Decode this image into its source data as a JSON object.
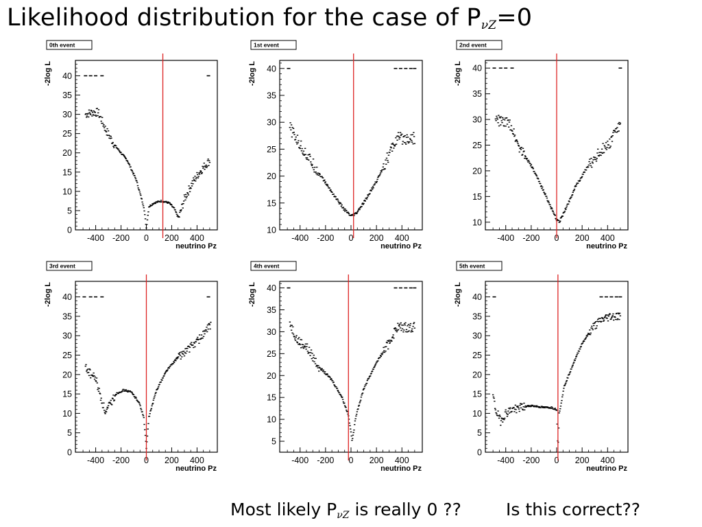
{
  "title": {
    "text": "Likelihood distribution for the case of P",
    "sub": "νZ",
    "tail": "=0"
  },
  "footer": {
    "q1_pre": "Most likely P",
    "q1_sub": "νZ",
    "q1_post": " is really 0 ??",
    "q2": "Is this correct??"
  },
  "colors": {
    "marker_line": "#dd2222",
    "data": "#000000"
  },
  "chart_data": [
    {
      "type": "scatter",
      "tag": "0th event",
      "xlabel": "neutrino Pz",
      "ylabel": "-2log L",
      "xticks": [
        -400,
        -200,
        0,
        200,
        400
      ],
      "yticks": [
        0,
        5,
        10,
        15,
        20,
        25,
        30,
        35,
        40
      ],
      "xlim": [
        -560,
        560
      ],
      "ylim": [
        0,
        44
      ],
      "marker_x": 130,
      "curve": [
        [
          -480,
          30
        ],
        [
          -430,
          30.5
        ],
        [
          -380,
          30.5
        ],
        [
          -320,
          26
        ],
        [
          -250,
          22
        ],
        [
          -150,
          18
        ],
        [
          -80,
          13
        ],
        [
          -20,
          6
        ],
        [
          0,
          0.5
        ],
        [
          20,
          6
        ],
        [
          60,
          7
        ],
        [
          120,
          7.5
        ],
        [
          180,
          7
        ],
        [
          220,
          5.5
        ],
        [
          255,
          3
        ],
        [
          300,
          8
        ],
        [
          360,
          12
        ],
        [
          420,
          15
        ],
        [
          470,
          17
        ],
        [
          500,
          18
        ]
      ],
      "flat_points": [
        [
          -480,
          40
        ],
        [
          -440,
          40
        ],
        [
          -400,
          40
        ],
        [
          -350,
          40
        ],
        [
          490,
          40
        ]
      ]
    },
    {
      "type": "scatter",
      "tag": "1st event",
      "xlabel": "neutrino Pz",
      "ylabel": "-2log L",
      "xticks": [
        -400,
        -200,
        0,
        200,
        400
      ],
      "yticks": [
        10,
        15,
        20,
        25,
        30,
        35,
        40
      ],
      "xlim": [
        -560,
        560
      ],
      "ylim": [
        10,
        41.5
      ],
      "marker_x": 20,
      "curve": [
        [
          -480,
          29
        ],
        [
          -420,
          26.5
        ],
        [
          -350,
          24
        ],
        [
          -250,
          20.5
        ],
        [
          -150,
          17
        ],
        [
          -60,
          14
        ],
        [
          0,
          12.5
        ],
        [
          40,
          13
        ],
        [
          100,
          15
        ],
        [
          200,
          19
        ],
        [
          300,
          24
        ],
        [
          360,
          27
        ],
        [
          420,
          27
        ],
        [
          500,
          27
        ]
      ],
      "flat_points": [
        [
          -490,
          40
        ],
        [
          350,
          40
        ],
        [
          390,
          40
        ],
        [
          430,
          40
        ],
        [
          470,
          40
        ],
        [
          500,
          40
        ]
      ]
    },
    {
      "type": "scatter",
      "tag": "2nd event",
      "xlabel": "neutrino Pz",
      "ylabel": "-2log L",
      "xticks": [
        -400,
        -200,
        0,
        200,
        400
      ],
      "yticks": [
        10,
        15,
        20,
        25,
        30,
        35,
        40
      ],
      "xlim": [
        -560,
        560
      ],
      "ylim": [
        8.5,
        41.5
      ],
      "marker_x": 0,
      "curve": [
        [
          -480,
          30
        ],
        [
          -420,
          29.5
        ],
        [
          -360,
          29
        ],
        [
          -300,
          25
        ],
        [
          -200,
          21
        ],
        [
          -100,
          16
        ],
        [
          -30,
          12
        ],
        [
          0,
          10.5
        ],
        [
          20,
          10
        ],
        [
          60,
          12
        ],
        [
          150,
          17
        ],
        [
          250,
          21
        ],
        [
          350,
          24
        ],
        [
          420,
          25.5
        ],
        [
          460,
          28
        ],
        [
          500,
          28.5
        ]
      ],
      "flat_points": [
        [
          -490,
          40
        ],
        [
          -440,
          40
        ],
        [
          -400,
          40
        ],
        [
          -350,
          40
        ],
        [
          500,
          40
        ]
      ]
    },
    {
      "type": "scatter",
      "tag": "3rd event",
      "xlabel": "neutrino Pz",
      "ylabel": "-2log L",
      "xticks": [
        -400,
        -200,
        0,
        200,
        400
      ],
      "yticks": [
        0,
        5,
        10,
        15,
        20,
        25,
        30,
        35,
        40
      ],
      "xlim": [
        -560,
        560
      ],
      "ylim": [
        0,
        44
      ],
      "marker_x": 0,
      "curve": [
        [
          -480,
          22
        ],
        [
          -440,
          20
        ],
        [
          -400,
          19
        ],
        [
          -360,
          14
        ],
        [
          -320,
          10
        ],
        [
          -290,
          12
        ],
        [
          -240,
          15
        ],
        [
          -180,
          16
        ],
        [
          -120,
          15.5
        ],
        [
          -60,
          13
        ],
        [
          -20,
          9
        ],
        [
          0,
          1
        ],
        [
          20,
          9
        ],
        [
          80,
          16
        ],
        [
          160,
          21
        ],
        [
          250,
          24.5
        ],
        [
          350,
          27
        ],
        [
          430,
          29.5
        ],
        [
          480,
          31.5
        ],
        [
          510,
          33
        ]
      ],
      "flat_points": [
        [
          -490,
          40
        ],
        [
          -440,
          40
        ],
        [
          -400,
          40
        ],
        [
          -350,
          40
        ],
        [
          490,
          40
        ]
      ]
    },
    {
      "type": "scatter",
      "tag": "4th event",
      "xlabel": "neutrino Pz",
      "ylabel": "-2log L",
      "xticks": [
        -400,
        -200,
        0,
        200,
        400
      ],
      "yticks": [
        5,
        10,
        15,
        20,
        25,
        30,
        35,
        40
      ],
      "xlim": [
        -560,
        560
      ],
      "ylim": [
        2.5,
        41.5
      ],
      "marker_x": -20,
      "curve": [
        [
          -480,
          32
        ],
        [
          -420,
          28
        ],
        [
          -350,
          26.5
        ],
        [
          -250,
          22
        ],
        [
          -150,
          19
        ],
        [
          -70,
          15
        ],
        [
          -20,
          11
        ],
        [
          10,
          5
        ],
        [
          40,
          11
        ],
        [
          100,
          17
        ],
        [
          200,
          23
        ],
        [
          300,
          27.5
        ],
        [
          360,
          31
        ],
        [
          420,
          31
        ],
        [
          500,
          31
        ]
      ],
      "flat_points": [
        [
          -490,
          40
        ],
        [
          350,
          40
        ],
        [
          390,
          40
        ],
        [
          430,
          40
        ],
        [
          470,
          40
        ],
        [
          500,
          40
        ]
      ]
    },
    {
      "type": "scatter",
      "tag": "5th event",
      "xlabel": "neutrino Pz",
      "ylabel": "-2log L",
      "xticks": [
        -400,
        -200,
        0,
        200,
        400
      ],
      "yticks": [
        0,
        5,
        10,
        15,
        20,
        25,
        30,
        35,
        40
      ],
      "xlim": [
        -560,
        560
      ],
      "ylim": [
        0,
        44
      ],
      "marker_x": 10,
      "curve": [
        [
          -500,
          14.5
        ],
        [
          -480,
          11
        ],
        [
          -440,
          8
        ],
        [
          -400,
          10
        ],
        [
          -350,
          11
        ],
        [
          -280,
          11.5
        ],
        [
          -200,
          12
        ],
        [
          -100,
          11.5
        ],
        [
          -40,
          11.5
        ],
        [
          0,
          11
        ],
        [
          10,
          1
        ],
        [
          20,
          10
        ],
        [
          60,
          17
        ],
        [
          120,
          22
        ],
        [
          200,
          28
        ],
        [
          280,
          32
        ],
        [
          350,
          34
        ],
        [
          420,
          35
        ],
        [
          500,
          35
        ]
      ],
      "flat_points": [
        [
          -490,
          40
        ],
        [
          350,
          40
        ],
        [
          390,
          40
        ],
        [
          430,
          40
        ],
        [
          470,
          40
        ],
        [
          500,
          40
        ]
      ]
    }
  ]
}
